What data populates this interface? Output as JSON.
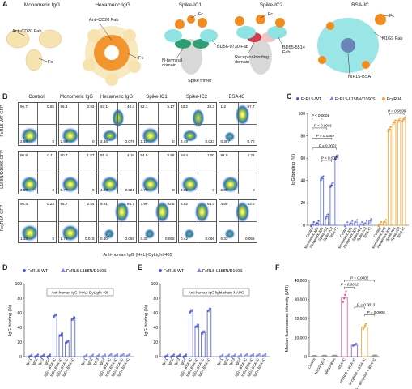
{
  "panel_letters": [
    "A",
    "B",
    "C",
    "D",
    "E",
    "F"
  ],
  "panelA": {
    "titles": [
      "Monomeric IgG",
      "Hexameric IgG",
      "Spike-IC1",
      "Spike-IC2",
      "BSA-IC"
    ],
    "labels": {
      "mono_fab": "Anti-CD20 Fab",
      "mono_fc": "Fc",
      "hex_fab": "Anti-CD20 Fab",
      "hex_fc": "Fc",
      "ic1_fc": "Fc",
      "ic1_ntd": "N-terminal domain",
      "ic1_bd": "BD56-0730 Fab",
      "ic1_trimer": "Spike trimer",
      "ic2_fc": "Fc",
      "ic2_rbd": "Receptor-binding domain",
      "ic2_bd": "BD55-5514 Fab",
      "bsa_fc": "Fc",
      "bsa_n1g9": "N1G9 Fab",
      "bsa_nip": "NIP15-BSA"
    },
    "colors": {
      "fab": "#f3dca0",
      "fc": "#f28c1e",
      "spike": "#d8d8d8",
      "ntd": "#2f9e74",
      "rbd": "#d23b4a",
      "bsa": "#8fe3e3",
      "fab_light": "#f6e3b0"
    }
  },
  "panelB": {
    "columns": [
      "Control",
      "Monomeric IgG",
      "Hexameric IgG",
      "Spike-IC1",
      "Spike-IC2",
      "BSA-IC"
    ],
    "rows": [
      "FcRL5 WT-GFP",
      "L158N/D160S-GFP",
      "FcγRIIA-GFP"
    ],
    "x_axis": "Anti-human IgG (H+L)-DyLight 405",
    "values": [
      [
        [
          "96.7",
          "0.65",
          "2.64",
          "0"
        ],
        [
          "96.4",
          "0.93",
          "2.66",
          "0"
        ],
        [
          "57.1",
          "40.4",
          "2.46",
          "0.076"
        ],
        [
          "92.1",
          "5.17",
          "2.15",
          "0"
        ],
        [
          "63.2",
          "34.3",
          "2.49",
          "0.033"
        ],
        [
          "1.2",
          "97.7",
          "0.387",
          "0.70"
        ]
      ],
      [
        [
          "96.9",
          "0.11",
          "3.00",
          "0"
        ],
        [
          "90.7",
          "1.57",
          "5.77",
          "0"
        ],
        [
          "91.4",
          "4.16",
          "4.43",
          "0.021"
        ],
        [
          "94.6",
          "0.68",
          "4.75",
          "0"
        ],
        [
          "94.4",
          "1.00",
          "4.61",
          "0"
        ],
        [
          "92.9",
          "4.28",
          "2.80",
          "0"
        ]
      ],
      [
        [
          "98.4",
          "0.24",
          "1.33",
          "0"
        ],
        [
          "95.7",
          "2.54",
          "1.78",
          "0.018"
        ],
        [
          "9.91",
          "86.7",
          "0.30",
          "0.056"
        ],
        [
          "7.99",
          "92.5",
          "0.30",
          "0.065"
        ],
        [
          "8.52",
          "94.3",
          "0.42",
          "0.066"
        ],
        [
          "4.69",
          "93.0",
          "0.33",
          "0.056"
        ]
      ]
    ]
  },
  "panelC": {
    "ylabel": "IgG binding (%)",
    "yticks": [
      "0",
      "20",
      "40",
      "60",
      "80",
      "100"
    ],
    "legend": [
      "FcRL5-WT",
      "FcRL5-L158N/D160S",
      "FcγRIIA"
    ],
    "categories": [
      "Control",
      "Monomeric IgG",
      "Hexameric IgG",
      "Spike-IC1",
      "Spike-IC2",
      "BSA-IC"
    ],
    "pvalues": [
      "P < 0.0001",
      "P < 0.0001",
      "P = 0.0369",
      "P < 0.0001",
      "P < 0.0001",
      "P = 0.9999"
    ]
  },
  "panelD": {
    "ylabel": "IgG binding (%)",
    "yticks": [
      "0",
      "20",
      "40",
      "60",
      "80",
      "100"
    ],
    "legend": [
      "FcRL5-WT",
      "FcRL5-L158N/D160S"
    ],
    "boxlabel": "Anti-human IgG (H+L)-DyLight 405",
    "categories": [
      "IgG1",
      "IgG2",
      "IgG3",
      "IgG4",
      "IgG1 BSA-IC",
      "IgG2 BSA-IC",
      "IgG3 BSA-IC",
      "IgG4 BSA-IC"
    ]
  },
  "panelE": {
    "ylabel": "IgG binding (%)",
    "yticks": [
      "0",
      "20",
      "40",
      "60",
      "80",
      "100"
    ],
    "legend": [
      "FcRL5-WT",
      "FcRL5-L158N/D160S"
    ],
    "boxlabel": "Anti-human IgG light chain λ-APC",
    "categories": [
      "IgG1",
      "IgG2",
      "IgG3",
      "IgG4",
      "IgG1 BSA-IC",
      "IgG2 BSA-IC",
      "IgG3 BSA-IC",
      "IgG4 BSA-IC"
    ]
  },
  "panelF": {
    "ylabel": "Median fluorescence intensity (MFI)",
    "yticks": [
      "0",
      "10,000",
      "20,000",
      "30,000",
      "40,000"
    ],
    "categories": [
      "Control",
      "N1G9 IgG1",
      "NIP15-BSA",
      "BSA-IC",
      "αFcRL5 + BSA-IC",
      "αFcγRIIA + BSA-IC",
      "αFcRL5 + αFcγRIIA + BSA-IC"
    ],
    "pvalues": [
      "P = 0.0002",
      "P = 0.0012",
      "P = 0.0013",
      "P = 0.0006"
    ]
  },
  "chart_data": [
    {
      "type": "bar",
      "panel": "C",
      "ylabel": "IgG binding (%)",
      "ylim": [
        0,
        100
      ],
      "categories": [
        "Control",
        "Monomeric IgG",
        "Hexameric IgG",
        "Spike-IC1",
        "Spike-IC2",
        "BSA-IC"
      ],
      "series": [
        {
          "name": "FcRL5-WT",
          "color": "#4f5bd5",
          "values": [
            1,
            2,
            42,
            8,
            36,
            61
          ]
        },
        {
          "name": "FcRL5-L158N/D160S",
          "color": "#7b84e6",
          "values": [
            1,
            2,
            3,
            1,
            2,
            4
          ]
        },
        {
          "name": "FcγRIIA",
          "color": "#f0a030",
          "values": [
            1,
            3,
            86,
            92,
            94,
            95
          ]
        }
      ]
    },
    {
      "type": "bar",
      "panel": "D",
      "ylabel": "IgG binding (%)",
      "ylim": [
        0,
        100
      ],
      "categories": [
        "IgG1",
        "IgG2",
        "IgG3",
        "IgG4",
        "IgG1 BSA-IC",
        "IgG2 BSA-IC",
        "IgG3 BSA-IC",
        "IgG4 BSA-IC"
      ],
      "series": [
        {
          "name": "FcRL5-WT",
          "color": "#4f5bd5",
          "values": [
            1,
            1,
            1,
            1,
            56,
            30,
            20,
            52
          ]
        },
        {
          "name": "FcRL5-L158N/D160S",
          "color": "#7b84e6",
          "values": [
            1,
            1,
            1,
            1,
            2,
            2,
            2,
            2
          ]
        }
      ]
    },
    {
      "type": "bar",
      "panel": "E",
      "ylabel": "IgG binding (%)",
      "ylim": [
        0,
        100
      ],
      "categories": [
        "IgG1",
        "IgG2",
        "IgG3",
        "IgG4",
        "IgG1 BSA-IC",
        "IgG2 BSA-IC",
        "IgG3 BSA-IC",
        "IgG4 BSA-IC"
      ],
      "series": [
        {
          "name": "FcRL5-WT",
          "color": "#4f5bd5",
          "values": [
            1,
            1,
            1,
            1,
            62,
            42,
            33,
            64
          ]
        },
        {
          "name": "FcRL5-L158N/D160S",
          "color": "#7b84e6",
          "values": [
            1,
            1,
            1,
            1,
            2,
            2,
            2,
            2
          ]
        }
      ]
    },
    {
      "type": "bar",
      "panel": "F",
      "ylabel": "Median fluorescence intensity (MFI)",
      "ylim": [
        0,
        40000
      ],
      "categories": [
        "Control",
        "N1G9 IgG1",
        "NIP15-BSA",
        "BSA-IC",
        "αFcRL5 + BSA-IC",
        "αFcγRIIA + BSA-IC",
        "αFcRL5 + αFcγRIIA + BSA-IC"
      ],
      "values": [
        200,
        300,
        300,
        31000,
        6000,
        15500,
        400
      ],
      "colors": [
        "#999999",
        "#999999",
        "#999999",
        "#e2569a",
        "#7b5bd6",
        "#f0a030",
        "#999999"
      ]
    }
  ]
}
